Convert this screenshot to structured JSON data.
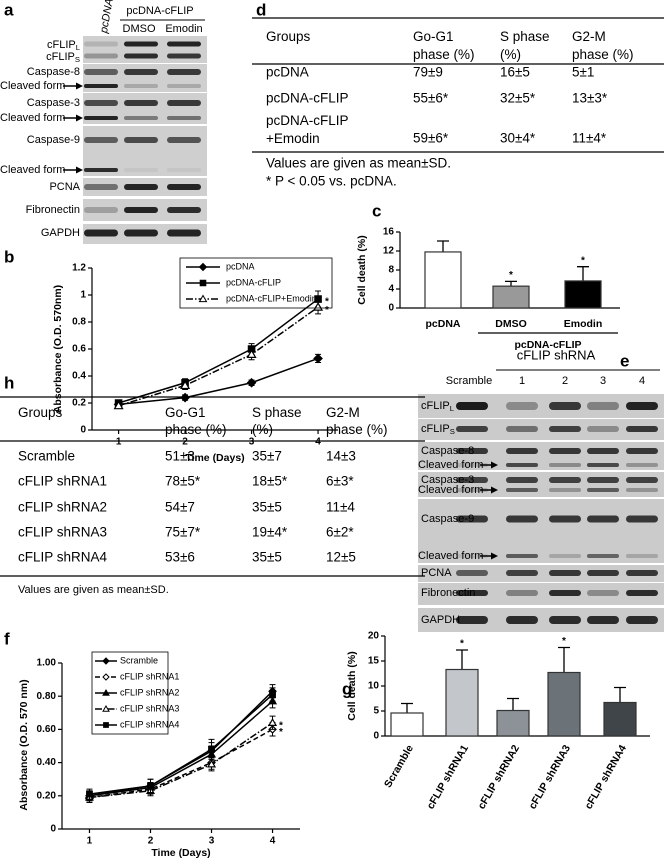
{
  "panel_labels": {
    "a": "a",
    "b": "b",
    "c": "c",
    "d": "d",
    "e": "e",
    "f": "f",
    "g": "g",
    "h": "h"
  },
  "blot_a": {
    "lanes": {
      "control": "pcDNA",
      "group": "pcDNA-cFLIP",
      "treatments": [
        "DMSO",
        "Emodin"
      ]
    },
    "rows": [
      {
        "base": "cFLIP",
        "sub": "L"
      },
      {
        "base": "cFLIP",
        "sub": "S"
      },
      "Caspase-8",
      "Cleaved form",
      "Caspase-3",
      "Cleaved form",
      "Caspase-9",
      "Cleaved form",
      "PCNA",
      "Fibronectin",
      "GAPDH"
    ]
  },
  "blot_e": {
    "group": "cFLIP shRNA",
    "lanes": [
      "Scramble",
      "1",
      "2",
      "3",
      "4"
    ],
    "rows": [
      {
        "base": "cFLIP",
        "sub": "L"
      },
      {
        "base": "cFLIP",
        "sub": "S"
      },
      "Caspase-8",
      "Cleaved form",
      "Caspase-3",
      "Cleaved form",
      "Caspase-9",
      "Cleaved form",
      "PCNA",
      "Fibronectin",
      "GAPDH"
    ]
  },
  "table_d": {
    "header": [
      [
        "Groups"
      ],
      [
        "Go-G1",
        "phase (%)"
      ],
      [
        "S phase",
        "(%)"
      ],
      [
        "G2-M",
        "phase (%)"
      ]
    ],
    "rows": [
      [
        "pcDNA",
        "79±9",
        "16±5",
        "5±1"
      ],
      [
        "pcDNA-cFLIP",
        "55±6*",
        "32±5*",
        "13±3*"
      ],
      [
        [
          "pcDNA-cFLIP",
          "+Emodin"
        ],
        "59±6*",
        "30±4*",
        "11±4*"
      ]
    ],
    "notes": [
      "Values are given as mean±SD.",
      "* P < 0.05 vs. pcDNA."
    ]
  },
  "table_h": {
    "header": [
      [
        "Groups"
      ],
      [
        "Go-G1",
        "phase (%)"
      ],
      [
        "S phase",
        "(%)"
      ],
      [
        "G2-M",
        "phase (%)"
      ]
    ],
    "rows": [
      [
        "Scramble",
        "51±3",
        "35±7",
        "14±3"
      ],
      [
        "cFLIP shRNA1",
        "78±5*",
        "18±5*",
        "6±3*"
      ],
      [
        "cFLIP shRNA2",
        "54±7",
        "35±5",
        "11±4"
      ],
      [
        "cFLIP shRNA3",
        "75±7*",
        "19±4*",
        "6±2*"
      ],
      [
        "cFLIP shRNA4",
        "53±6",
        "35±5",
        "12±5"
      ]
    ],
    "notes": [
      "Values are given as mean±SD."
    ]
  },
  "chart_data": [
    {
      "type": "line",
      "xlabel": "Time (Days)",
      "ylabel": "Absorbance (O.D. 570nm)",
      "x": [
        1,
        2,
        3,
        4
      ],
      "xlim": [
        0.6,
        4.3
      ],
      "xticks": [
        1,
        2,
        3,
        4
      ],
      "ylim": [
        0,
        1.2
      ],
      "yticks": [
        0,
        0.2,
        0.4,
        0.6,
        0.8,
        1,
        1.2
      ],
      "series": [
        {
          "name": "pcDNA",
          "color": "#000000",
          "marker": "diamond",
          "filled": true,
          "dash": "solid",
          "values": [
            0.19,
            0.24,
            0.35,
            0.53
          ],
          "errors": [
            0.02,
            0.02,
            0.02,
            0.03
          ]
        },
        {
          "name": "pcDNA-cFLIP",
          "color": "#000000",
          "marker": "square",
          "filled": true,
          "dash": "solid",
          "values": [
            0.2,
            0.35,
            0.6,
            0.97
          ],
          "errors": [
            0.02,
            0.03,
            0.04,
            0.06
          ],
          "annotation": "*"
        },
        {
          "name": "pcDNA-cFLIP+Emodin",
          "color": "#000000",
          "marker": "triangle",
          "filled": false,
          "dash": "dashdot",
          "values": [
            0.18,
            0.33,
            0.56,
            0.91
          ],
          "errors": [
            0.02,
            0.03,
            0.04,
            0.05
          ],
          "annotation": "*"
        }
      ]
    },
    {
      "type": "bar",
      "ylabel": "Cell death (%)",
      "categories": [
        "pcDNA",
        "DMSO",
        "Emodin"
      ],
      "group_label": "pcDNA-cFLIP",
      "values": [
        11.8,
        4.6,
        5.7
      ],
      "errors": [
        2.3,
        1.0,
        3.0
      ],
      "colors": [
        "#ffffff",
        "#999999",
        "#000000"
      ],
      "annotations": [
        null,
        "*",
        "*"
      ],
      "ylim": [
        0,
        16
      ],
      "yticks": [
        0,
        4,
        8,
        12,
        16
      ]
    },
    {
      "type": "line",
      "xlabel": "Time (Days)",
      "ylabel": "Absorbance (O.D. 570 nm)",
      "x": [
        1,
        2,
        3,
        4
      ],
      "xlim": [
        0.55,
        4.45
      ],
      "xticks": [
        1,
        2,
        3,
        4
      ],
      "ylim": [
        0,
        1.0
      ],
      "yticks": [
        0,
        {
          "value": 0.2,
          "label": "0.20"
        },
        {
          "value": 0.4,
          "label": "0.40"
        },
        {
          "value": 0.6,
          "label": "0.60"
        },
        {
          "value": 0.8,
          "label": "0.80"
        },
        {
          "value": 1.0,
          "label": "1.00"
        }
      ],
      "series": [
        {
          "name": "Scramble",
          "color": "#000000",
          "marker": "diamond",
          "filled": true,
          "dash": "solid",
          "values": [
            0.2,
            0.26,
            0.47,
            0.83
          ],
          "errors": [
            0.03,
            0.04,
            0.05,
            0.04
          ]
        },
        {
          "name": "cFLIP shRNA1",
          "color": "#000000",
          "marker": "diamond",
          "filled": false,
          "dash": "dashed",
          "values": [
            0.19,
            0.24,
            0.4,
            0.6
          ],
          "errors": [
            0.03,
            0.03,
            0.04,
            0.04
          ],
          "annotation": "*"
        },
        {
          "name": "cFLIP shRNA2",
          "color": "#000000",
          "marker": "triangle",
          "filled": true,
          "dash": "solid",
          "values": [
            0.2,
            0.25,
            0.45,
            0.77
          ],
          "errors": [
            0.03,
            0.03,
            0.05,
            0.04
          ]
        },
        {
          "name": "cFLIP shRNA3",
          "color": "#000000",
          "marker": "triangle",
          "filled": false,
          "dash": "dashdot",
          "values": [
            0.19,
            0.23,
            0.39,
            0.64
          ],
          "errors": [
            0.02,
            0.03,
            0.04,
            0.04
          ],
          "annotation": "*"
        },
        {
          "name": "cFLIP shRNA4",
          "color": "#000000",
          "marker": "square",
          "filled": true,
          "dash": "solid",
          "values": [
            0.21,
            0.26,
            0.48,
            0.81
          ],
          "errors": [
            0.03,
            0.04,
            0.06,
            0.04
          ]
        }
      ]
    },
    {
      "type": "bar",
      "ylabel": "Cell death (%)",
      "categories": [
        "Scramble",
        "cFLIP shRNA1",
        "cFLIP shRNA2",
        "cFLIP shRNA3",
        "cFLIP shRNA4"
      ],
      "values": [
        4.6,
        13.3,
        5.1,
        12.7,
        6.7
      ],
      "errors": [
        1.9,
        3.9,
        2.4,
        5.0,
        3.0
      ],
      "colors": [
        "#ffffff",
        "#c3c7cb",
        "#8c9297",
        "#6b7378",
        "#3f4549"
      ],
      "annotations": [
        null,
        "*",
        null,
        "*",
        null
      ],
      "ylim": [
        0,
        20
      ],
      "yticks": [
        0,
        5,
        10,
        15,
        20
      ]
    }
  ]
}
